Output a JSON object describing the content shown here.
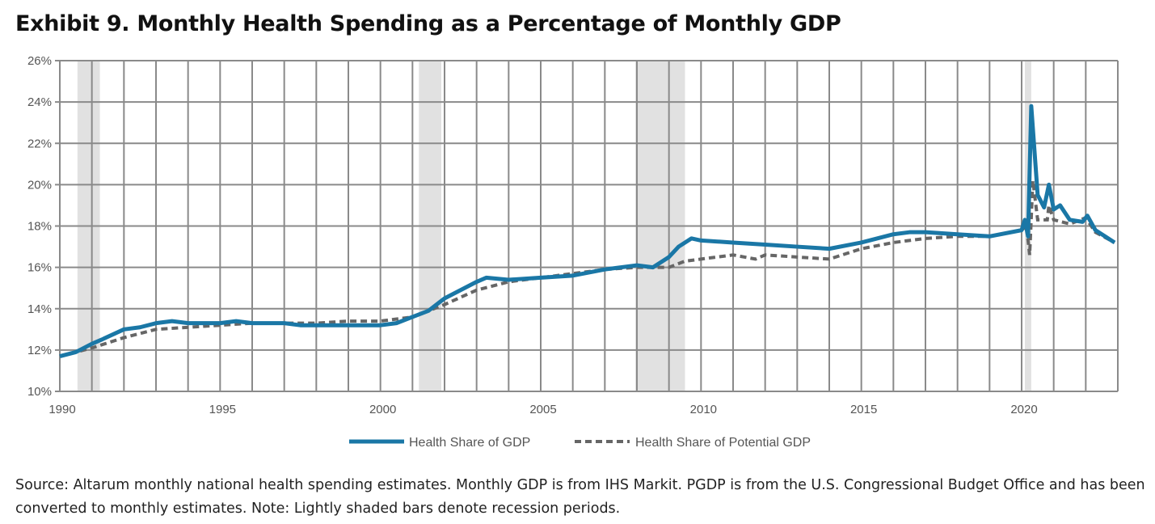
{
  "title": "Exhibit 9. Monthly Health Spending as a Percentage of Monthly GDP",
  "source": "Source: Altarum monthly national health spending estimates. Monthly GDP is from IHS Markit. PGDP is from the U.S. Congressional Budget Office and has been converted to monthly estimates. Note: Lightly shaded bars denote recession periods.",
  "chart_data": {
    "type": "line",
    "title": "Exhibit 9. Monthly Health Spending as a Percentage of Monthly GDP",
    "xlabel": "",
    "ylabel": "",
    "xlim": [
      1990,
      2023
    ],
    "ylim": [
      10,
      26
    ],
    "grid": true,
    "legend_position": "bottom",
    "x_ticks": [
      1990,
      1995,
      2000,
      2005,
      2010,
      2015,
      2020
    ],
    "x_tick_labels": [
      "1990",
      "1995",
      "2000",
      "2005",
      "2010",
      "2015",
      "2020"
    ],
    "y_ticks": [
      10,
      12,
      14,
      16,
      18,
      20,
      22,
      24,
      26
    ],
    "y_tick_labels": [
      "10%",
      "12%",
      "14%",
      "16%",
      "18%",
      "20%",
      "22%",
      "24%",
      "26%"
    ],
    "recessions": [
      [
        1990.55,
        1991.25
      ],
      [
        2001.2,
        2001.9
      ],
      [
        2007.95,
        2009.5
      ],
      [
        2020.1,
        2020.3
      ]
    ],
    "colors": {
      "health": "#1a77a6",
      "potential": "#666666",
      "recession": "#e1e1e1",
      "grid": "#8a8a8a"
    },
    "series": [
      {
        "name": "Health Share of GDP",
        "style": "solid",
        "x": [
          1990,
          1990.5,
          1991,
          1991.3,
          1992,
          1992.5,
          1993,
          1993.5,
          1994,
          1995,
          1995.5,
          1996,
          1997,
          1997.5,
          1998,
          1999,
          2000,
          2000.5,
          2001,
          2001.5,
          2002,
          2002.5,
          2003,
          2003.3,
          2004,
          2005,
          2006,
          2007,
          2008,
          2008.5,
          2009,
          2009.3,
          2009.7,
          2010,
          2011,
          2012,
          2013,
          2014,
          2015,
          2016,
          2016.5,
          2017,
          2018,
          2019,
          2020,
          2020.1,
          2020.2,
          2020.3,
          2020.5,
          2020.7,
          2020.85,
          2021,
          2021.2,
          2021.5,
          2021.9,
          2022.05,
          2022.3,
          2022.6,
          2022.9
        ],
        "y": [
          11.7,
          11.9,
          12.3,
          12.5,
          13.0,
          13.1,
          13.3,
          13.4,
          13.3,
          13.3,
          13.4,
          13.3,
          13.3,
          13.2,
          13.2,
          13.2,
          13.2,
          13.3,
          13.6,
          13.9,
          14.5,
          14.9,
          15.3,
          15.5,
          15.4,
          15.5,
          15.6,
          15.9,
          16.1,
          16.0,
          16.5,
          17.0,
          17.4,
          17.3,
          17.2,
          17.1,
          17.0,
          16.9,
          17.2,
          17.6,
          17.7,
          17.7,
          17.6,
          17.5,
          17.8,
          18.3,
          17.5,
          23.8,
          19.5,
          18.9,
          20.0,
          18.8,
          19.0,
          18.3,
          18.2,
          18.5,
          17.8,
          17.5,
          17.2
        ]
      },
      {
        "name": "Health Share of Potential GDP",
        "style": "dashed",
        "x": [
          1990,
          1991,
          1992,
          1993,
          1994,
          1995,
          1996,
          1997,
          1998,
          1999,
          2000,
          2001,
          2002,
          2003,
          2004,
          2005,
          2006,
          2007,
          2008,
          2009,
          2009.5,
          2010,
          2011,
          2011.7,
          2012,
          2013,
          2014,
          2015,
          2016,
          2017,
          2018,
          2019,
          2020,
          2020.15,
          2020.25,
          2020.35,
          2020.5,
          2020.8,
          2020.85,
          2021,
          2021.5,
          2022,
          2022.3,
          2022.9
        ],
        "y": [
          11.7,
          12.1,
          12.6,
          13.0,
          13.1,
          13.2,
          13.3,
          13.3,
          13.3,
          13.4,
          13.4,
          13.6,
          14.2,
          14.9,
          15.3,
          15.5,
          15.7,
          15.9,
          16.0,
          16.0,
          16.3,
          16.4,
          16.6,
          16.4,
          16.6,
          16.5,
          16.4,
          16.9,
          17.2,
          17.4,
          17.5,
          17.5,
          17.8,
          18.0,
          16.6,
          20.2,
          18.3,
          18.3,
          19.0,
          18.3,
          18.1,
          18.4,
          17.7,
          17.2
        ]
      }
    ]
  }
}
